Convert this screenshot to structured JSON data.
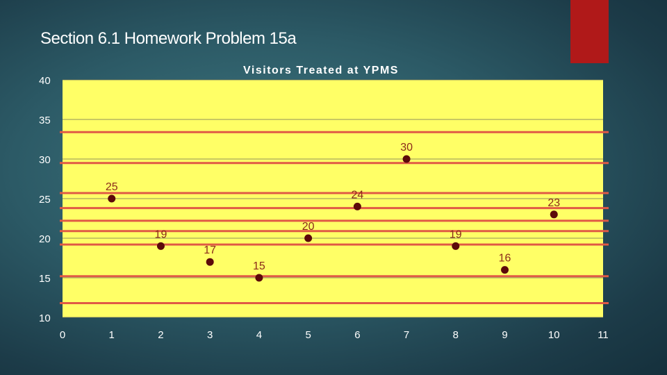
{
  "slide": {
    "title": "Section 6.1 Homework Problem 15a",
    "accent_color": "#b01919"
  },
  "chart_data": {
    "type": "scatter",
    "title": "Visitors Treated at YPMS",
    "xlabel": "",
    "ylabel": "",
    "xlim": [
      0,
      11
    ],
    "ylim": [
      10,
      40
    ],
    "x_ticks": [
      "0",
      "1",
      "2",
      "3",
      "4",
      "5",
      "6",
      "7",
      "8",
      "9",
      "10",
      "11"
    ],
    "y_ticks": [
      "10",
      "15",
      "20",
      "25",
      "30",
      "35",
      "40"
    ],
    "grid": true,
    "plot_background": "#ffff66",
    "marker_color": "#5c0a0a",
    "label_color": "#8b2a1a",
    "series": [
      {
        "x": [
          1,
          2,
          3,
          4,
          5,
          6,
          7,
          8,
          9,
          10
        ],
        "y": [
          25,
          19,
          17,
          15,
          20,
          24,
          30,
          19,
          16,
          23
        ],
        "labels": [
          "25",
          "19",
          "17",
          "15",
          "20",
          "24",
          "30",
          "19",
          "16",
          "23"
        ]
      }
    ],
    "reference_lines": {
      "color": "#e05a45",
      "y": [
        11.8,
        15.2,
        19.2,
        20.9,
        22.2,
        23.8,
        25.7,
        29.5,
        33.4
      ]
    }
  }
}
